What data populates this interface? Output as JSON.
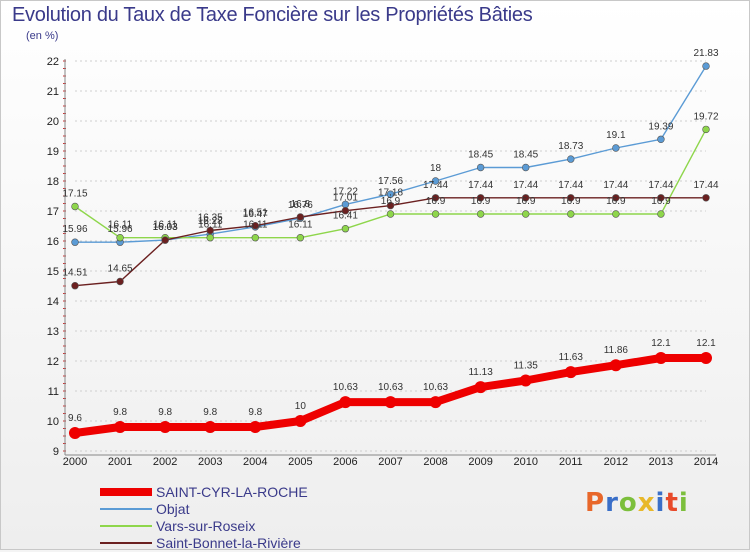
{
  "title": "Evolution du Taux de Taxe Foncière sur les Propriétés Bâties",
  "subtitle": "(en %)",
  "logo": {
    "text": "Proxiti",
    "colors": [
      "#e8672a",
      "#3a6fc8",
      "#7cbf3c",
      "#e8b82a",
      "#3a6fc8",
      "#e84a2a",
      "#7cbf3c"
    ]
  },
  "chart_data": {
    "type": "line",
    "title": "Evolution du Taux de Taxe Foncière sur les Propriétés Bâties",
    "ylabel": "(en %)",
    "xlabel": "",
    "ylim": [
      9,
      22
    ],
    "yticks": [
      9,
      10,
      11,
      12,
      13,
      14,
      15,
      16,
      17,
      18,
      19,
      20,
      21,
      22
    ],
    "x": [
      "2000",
      "2001",
      "2002",
      "2003",
      "2004",
      "2005",
      "2006",
      "2007",
      "2008",
      "2009",
      "2010",
      "2011",
      "2012",
      "2013",
      "2014"
    ],
    "grid": "horizontal dashed",
    "legend": "bottom-left",
    "series": [
      {
        "name": "SAINT-CYR-LA-ROCHE",
        "color": "#ee0000",
        "style": "thick",
        "values": [
          9.6,
          9.8,
          9.8,
          9.8,
          9.8,
          10,
          10.63,
          10.63,
          10.63,
          11.13,
          11.35,
          11.63,
          11.86,
          12.1,
          12.1
        ],
        "labels": [
          "9.6",
          "9.8",
          "9.8",
          "9.8",
          "9.8",
          "10",
          "10.63",
          "10.63",
          "10.63",
          "11.13",
          "11.35",
          "11.63",
          "11.86",
          "12.1",
          "12.1"
        ]
      },
      {
        "name": "Objat",
        "color": "#5b9bd5",
        "style": "thin",
        "values": [
          15.96,
          15.96,
          16.03,
          16.23,
          16.47,
          16.76,
          17.22,
          17.56,
          18,
          18.45,
          18.45,
          18.73,
          19.1,
          19.39,
          21.83
        ],
        "labels": [
          "15.96",
          "15.96",
          "16.03",
          "16.23",
          "16.47",
          "16.76",
          "17.22",
          "17.56",
          "18",
          "18.45",
          "18.45",
          "18.73",
          "19.1",
          "19.39",
          "21.83"
        ]
      },
      {
        "name": "Vars-sur-Roseix",
        "color": "#8ed64b",
        "style": "thin",
        "values": [
          17.15,
          16.11,
          16.11,
          16.11,
          16.11,
          16.11,
          16.41,
          16.9,
          16.9,
          16.9,
          16.9,
          16.9,
          16.9,
          16.9,
          19.72
        ],
        "labels": [
          "17.15",
          "16.11",
          "16.11",
          "16.11",
          "16.11",
          "16.11",
          "16.41",
          "16.9",
          "16.9",
          "16.9",
          "16.9",
          "16.9",
          "16.9",
          "16.9",
          "19.72"
        ]
      },
      {
        "name": "Saint-Bonnet-la-Rivière",
        "color": "#6b2020",
        "style": "thin",
        "values": [
          14.51,
          14.65,
          16.03,
          16.35,
          16.51,
          16.8,
          17.01,
          17.18,
          17.44,
          17.44,
          17.44,
          17.44,
          17.44,
          17.44,
          17.44
        ],
        "labels": [
          "14.51",
          "14.65",
          "16.03",
          "16.35",
          "16.51",
          "16.8",
          "17.01",
          "17.18",
          "17.44",
          "17.44",
          "17.44",
          "17.44",
          "17.44",
          "17.44",
          "17.44"
        ]
      }
    ]
  }
}
